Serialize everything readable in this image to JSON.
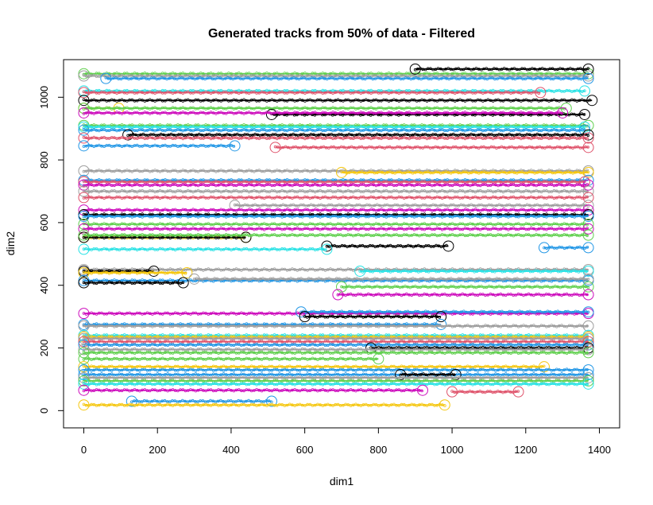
{
  "chart_data": {
    "type": "scatter",
    "title": "Generated tracks from 50% of data - Filtered",
    "xlabel": "dim1",
    "ylabel": "dim2",
    "xlim": [
      -55,
      1455
    ],
    "ylim": [
      -55,
      1120
    ],
    "x_ticks": [
      0,
      200,
      400,
      600,
      800,
      1000,
      1200,
      1400
    ],
    "y_ticks": [
      0,
      200,
      400,
      600,
      800,
      1000
    ],
    "grid": false,
    "legend": "none",
    "colors": {
      "black": "#000000",
      "red": "#df536b",
      "green": "#61d04f",
      "blue": "#2297e6",
      "cyan": "#28e2e5",
      "magenta": "#cd0bbc",
      "yellow": "#f5c710",
      "gray": "#9e9e9e"
    },
    "series": [
      {
        "color": "green",
        "x_start": 0,
        "x_end": 1370,
        "y": 1075
      },
      {
        "color": "gray",
        "x_start": 0,
        "x_end": 1370,
        "y": 1068
      },
      {
        "color": "black",
        "x_start": 900,
        "x_end": 1370,
        "y": 1090
      },
      {
        "color": "blue",
        "x_start": 60,
        "x_end": 1370,
        "y": 1060
      },
      {
        "color": "cyan",
        "x_start": 0,
        "x_end": 1360,
        "y": 1020
      },
      {
        "color": "red",
        "x_start": 0,
        "x_end": 1240,
        "y": 1015
      },
      {
        "color": "yellow",
        "x_start": 0,
        "x_end": 95,
        "y": 965
      },
      {
        "color": "black",
        "x_start": 0,
        "x_end": 1380,
        "y": 990
      },
      {
        "color": "green",
        "x_start": 0,
        "x_end": 1310,
        "y": 965
      },
      {
        "color": "black",
        "x_start": 510,
        "x_end": 1360,
        "y": 945
      },
      {
        "color": "magenta",
        "x_start": 0,
        "x_end": 1300,
        "y": 950
      },
      {
        "color": "green",
        "x_start": 0,
        "x_end": 1370,
        "y": 910
      },
      {
        "color": "cyan",
        "x_start": 0,
        "x_end": 1360,
        "y": 905
      },
      {
        "color": "blue",
        "x_start": 0,
        "x_end": 1360,
        "y": 895
      },
      {
        "color": "black",
        "x_start": 120,
        "x_end": 1370,
        "y": 880
      },
      {
        "color": "red",
        "x_start": 0,
        "x_end": 1370,
        "y": 870
      },
      {
        "color": "blue",
        "x_start": 0,
        "x_end": 410,
        "y": 845
      },
      {
        "color": "red",
        "x_start": 520,
        "x_end": 1370,
        "y": 840
      },
      {
        "color": "gray",
        "x_start": 0,
        "x_end": 1370,
        "y": 765
      },
      {
        "color": "yellow",
        "x_start": 700,
        "x_end": 1370,
        "y": 760
      },
      {
        "color": "blue",
        "x_start": 0,
        "x_end": 1370,
        "y": 735
      },
      {
        "color": "red",
        "x_start": 0,
        "x_end": 1360,
        "y": 730
      },
      {
        "color": "magenta",
        "x_start": 0,
        "x_end": 1370,
        "y": 720
      },
      {
        "color": "gray",
        "x_start": 0,
        "x_end": 1370,
        "y": 700
      },
      {
        "color": "red",
        "x_start": 0,
        "x_end": 1370,
        "y": 680
      },
      {
        "color": "gray",
        "x_start": 410,
        "x_end": 1370,
        "y": 655
      },
      {
        "color": "magenta",
        "x_start": 0,
        "x_end": 1370,
        "y": 640
      },
      {
        "color": "black",
        "x_start": 0,
        "x_end": 1370,
        "y": 625
      },
      {
        "color": "blue",
        "x_start": 0,
        "x_end": 1370,
        "y": 620
      },
      {
        "color": "green",
        "x_start": 0,
        "x_end": 1370,
        "y": 595
      },
      {
        "color": "magenta",
        "x_start": 0,
        "x_end": 1370,
        "y": 580
      },
      {
        "color": "yellow",
        "x_start": 0,
        "x_end": 440,
        "y": 553
      },
      {
        "color": "black",
        "x_start": 0,
        "x_end": 440,
        "y": 553
      },
      {
        "color": "green",
        "x_start": 0,
        "x_end": 1370,
        "y": 560
      },
      {
        "color": "black",
        "x_start": 660,
        "x_end": 990,
        "y": 525
      },
      {
        "color": "cyan",
        "x_start": 0,
        "x_end": 660,
        "y": 515
      },
      {
        "color": "blue",
        "x_start": 1250,
        "x_end": 1370,
        "y": 520
      },
      {
        "color": "gray",
        "x_start": 0,
        "x_end": 1370,
        "y": 450
      },
      {
        "color": "black",
        "x_start": 0,
        "x_end": 190,
        "y": 445
      },
      {
        "color": "yellow",
        "x_start": 0,
        "x_end": 280,
        "y": 440
      },
      {
        "color": "cyan",
        "x_start": 750,
        "x_end": 1370,
        "y": 445
      },
      {
        "color": "blue",
        "x_start": 0,
        "x_end": 1370,
        "y": 415
      },
      {
        "color": "black",
        "x_start": 0,
        "x_end": 270,
        "y": 408
      },
      {
        "color": "gray",
        "x_start": 300,
        "x_end": 1370,
        "y": 420
      },
      {
        "color": "green",
        "x_start": 700,
        "x_end": 1370,
        "y": 395
      },
      {
        "color": "magenta",
        "x_start": 690,
        "x_end": 1370,
        "y": 370
      },
      {
        "color": "magenta",
        "x_start": 0,
        "x_end": 1370,
        "y": 310
      },
      {
        "color": "blue",
        "x_start": 590,
        "x_end": 1370,
        "y": 315
      },
      {
        "color": "black",
        "x_start": 600,
        "x_end": 970,
        "y": 300
      },
      {
        "color": "blue",
        "x_start": 0,
        "x_end": 970,
        "y": 275
      },
      {
        "color": "gray",
        "x_start": 0,
        "x_end": 1370,
        "y": 270
      },
      {
        "color": "cyan",
        "x_start": 0,
        "x_end": 1370,
        "y": 240
      },
      {
        "color": "yellow",
        "x_start": 0,
        "x_end": 1370,
        "y": 235
      },
      {
        "color": "gray",
        "x_start": 0,
        "x_end": 1370,
        "y": 230
      },
      {
        "color": "red",
        "x_start": 0,
        "x_end": 1370,
        "y": 220
      },
      {
        "color": "blue",
        "x_start": 0,
        "x_end": 1370,
        "y": 210
      },
      {
        "color": "black",
        "x_start": 780,
        "x_end": 1370,
        "y": 200
      },
      {
        "color": "gray",
        "x_start": 0,
        "x_end": 1370,
        "y": 195
      },
      {
        "color": "green",
        "x_start": 0,
        "x_end": 1370,
        "y": 185
      },
      {
        "color": "green",
        "x_start": 0,
        "x_end": 800,
        "y": 165
      },
      {
        "color": "yellow",
        "x_start": 0,
        "x_end": 1250,
        "y": 140
      },
      {
        "color": "blue",
        "x_start": 0,
        "x_end": 1370,
        "y": 130
      },
      {
        "color": "blue",
        "x_start": 0,
        "x_end": 1370,
        "y": 115
      },
      {
        "color": "black",
        "x_start": 860,
        "x_end": 1010,
        "y": 115
      },
      {
        "color": "gray",
        "x_start": 0,
        "x_end": 1370,
        "y": 105
      },
      {
        "color": "green",
        "x_start": 0,
        "x_end": 1370,
        "y": 95
      },
      {
        "color": "cyan",
        "x_start": 0,
        "x_end": 1370,
        "y": 85
      },
      {
        "color": "magenta",
        "x_start": 0,
        "x_end": 920,
        "y": 65
      },
      {
        "color": "red",
        "x_start": 1000,
        "x_end": 1180,
        "y": 60
      },
      {
        "color": "blue",
        "x_start": 130,
        "x_end": 510,
        "y": 30
      },
      {
        "color": "yellow",
        "x_start": 0,
        "x_end": 980,
        "y": 18
      }
    ]
  }
}
